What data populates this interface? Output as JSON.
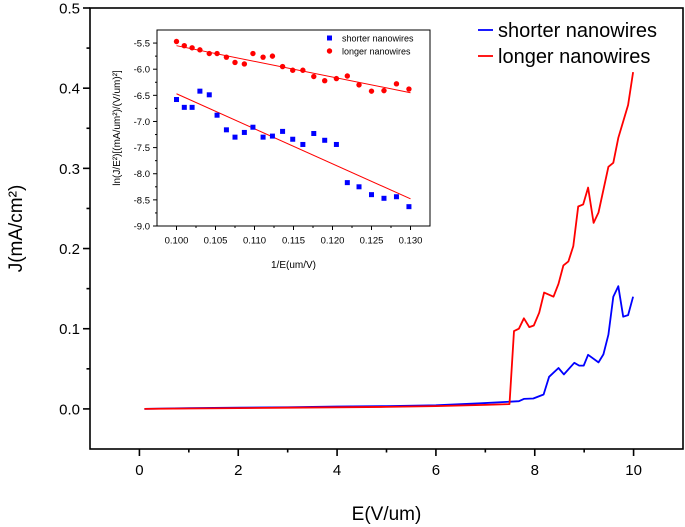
{
  "chart_data": [
    {
      "type": "line",
      "xlabel": "E(V/um)",
      "ylabel": "J(mA/cm²)",
      "xlim": [
        -1,
        11
      ],
      "ylim": [
        -0.05,
        0.5
      ],
      "xticks": [
        0,
        2,
        4,
        6,
        8,
        10
      ],
      "xtick_labels": [
        "0",
        "2",
        "4",
        "6",
        "8",
        "10"
      ],
      "yticks": [
        0.0,
        0.1,
        0.2,
        0.3,
        0.4,
        0.5
      ],
      "ytick_labels": [
        "0.0",
        "0.1",
        "0.2",
        "0.3",
        "0.4",
        "0.5"
      ],
      "grid": false,
      "legend": "top-right",
      "series": [
        {
          "name": "shorter nanowires",
          "color": "#0000ff",
          "x": [
            0.1,
            1,
            2,
            3,
            4,
            5,
            6,
            6.9,
            7.5,
            7.68,
            7.78,
            7.97,
            8.18,
            8.29,
            8.48,
            8.59,
            8.8,
            8.9,
            8.99,
            9.08,
            9.29,
            9.39,
            9.49,
            9.59,
            9.69,
            9.79,
            9.89,
            9.99
          ],
          "y": [
            0,
            0.001,
            0.0015,
            0.002,
            0.003,
            0.0035,
            0.0045,
            0.007,
            0.009,
            0.0096,
            0.0125,
            0.013,
            0.018,
            0.04,
            0.051,
            0.043,
            0.0575,
            0.054,
            0.054,
            0.0675,
            0.058,
            0.068,
            0.0925,
            0.14,
            0.153,
            0.115,
            0.117,
            0.14
          ]
        },
        {
          "name": "longer nanowires",
          "color": "#ff0000",
          "x": [
            0.1,
            1,
            2,
            3,
            4,
            5,
            6,
            7,
            7.49,
            7.58,
            7.68,
            7.78,
            7.89,
            7.98,
            8.09,
            8.19,
            8.38,
            8.48,
            8.58,
            8.68,
            8.78,
            8.88,
            8.98,
            9.08,
            9.19,
            9.29,
            9.49,
            9.59,
            9.69,
            9.89,
            9.99
          ],
          "y": [
            0,
            0.0005,
            0.001,
            0.0015,
            0.002,
            0.0025,
            0.0035,
            0.005,
            0.006,
            0.097,
            0.1,
            0.113,
            0.102,
            0.104,
            0.12,
            0.145,
            0.14,
            0.156,
            0.179,
            0.184,
            0.203,
            0.2525,
            0.255,
            0.276,
            0.232,
            0.245,
            0.302,
            0.307,
            0.338,
            0.379,
            0.42
          ]
        }
      ]
    },
    {
      "type": "scatter",
      "xlabel": "1/E(um/V)",
      "ylabel": "ln(J/E²)[(mA/um²)/(V/um)²]",
      "xlim": [
        0.0975,
        0.1325
      ],
      "ylim": [
        -9.0,
        -5.25
      ],
      "xticks": [
        0.1,
        0.105,
        0.11,
        0.115,
        0.12,
        0.125,
        0.13
      ],
      "xtick_labels": [
        "0.100",
        "0.105",
        "0.110",
        "0.115",
        "0.120",
        "0.125",
        "0.130"
      ],
      "yticks": [
        -5.5,
        -6.0,
        -6.5,
        -7.0,
        -7.5,
        -8.0,
        -8.5,
        -9.0
      ],
      "ytick_labels": [
        "-5.5",
        "-6.0",
        "-6.5",
        "-7.0",
        "-7.5",
        "-8.0",
        "-8.5",
        "-9.0"
      ],
      "grid": false,
      "legend": "top-right",
      "x": [
        0.1,
        0.101,
        0.102,
        0.103,
        0.1042,
        0.1052,
        0.1064,
        0.1075,
        0.1087,
        0.1098,
        0.1111,
        0.1123,
        0.1136,
        0.1149,
        0.1162,
        0.1176,
        0.119,
        0.1205,
        0.1219,
        0.1234,
        0.125,
        0.1266,
        0.1282,
        0.1298
      ],
      "series": [
        {
          "name": "shorter nanowires",
          "marker": "square",
          "color": "#0000ff",
          "y": [
            -6.58,
            -6.73,
            -6.73,
            -6.42,
            -6.49,
            -6.88,
            -7.16,
            -7.3,
            -7.21,
            -7.11,
            -7.3,
            -7.28,
            -7.19,
            -7.34,
            -7.44,
            -7.23,
            -7.36,
            -7.44,
            -8.17,
            -8.25,
            -8.4,
            -8.47,
            -8.44,
            -8.63
          ],
          "fit": {
            "x": [
              0.1,
              0.13
            ],
            "y": [
              -6.47,
              -8.48
            ],
            "color": "#ff0000"
          }
        },
        {
          "name": "longer nanowires",
          "marker": "circle",
          "color": "#ff0000",
          "y": [
            -5.47,
            -5.55,
            -5.59,
            -5.63,
            -5.7,
            -5.7,
            -5.77,
            -5.87,
            -5.9,
            -5.7,
            -5.77,
            -5.75,
            -5.95,
            -6.02,
            -6.02,
            -6.14,
            -6.22,
            -6.18,
            -6.13,
            -6.3,
            -6.42,
            -6.41,
            -6.28,
            -6.38
          ],
          "fit": {
            "x": [
              0.1,
              0.13
            ],
            "y": [
              -5.55,
              -6.45
            ],
            "color": "#ff0000"
          }
        }
      ]
    }
  ]
}
